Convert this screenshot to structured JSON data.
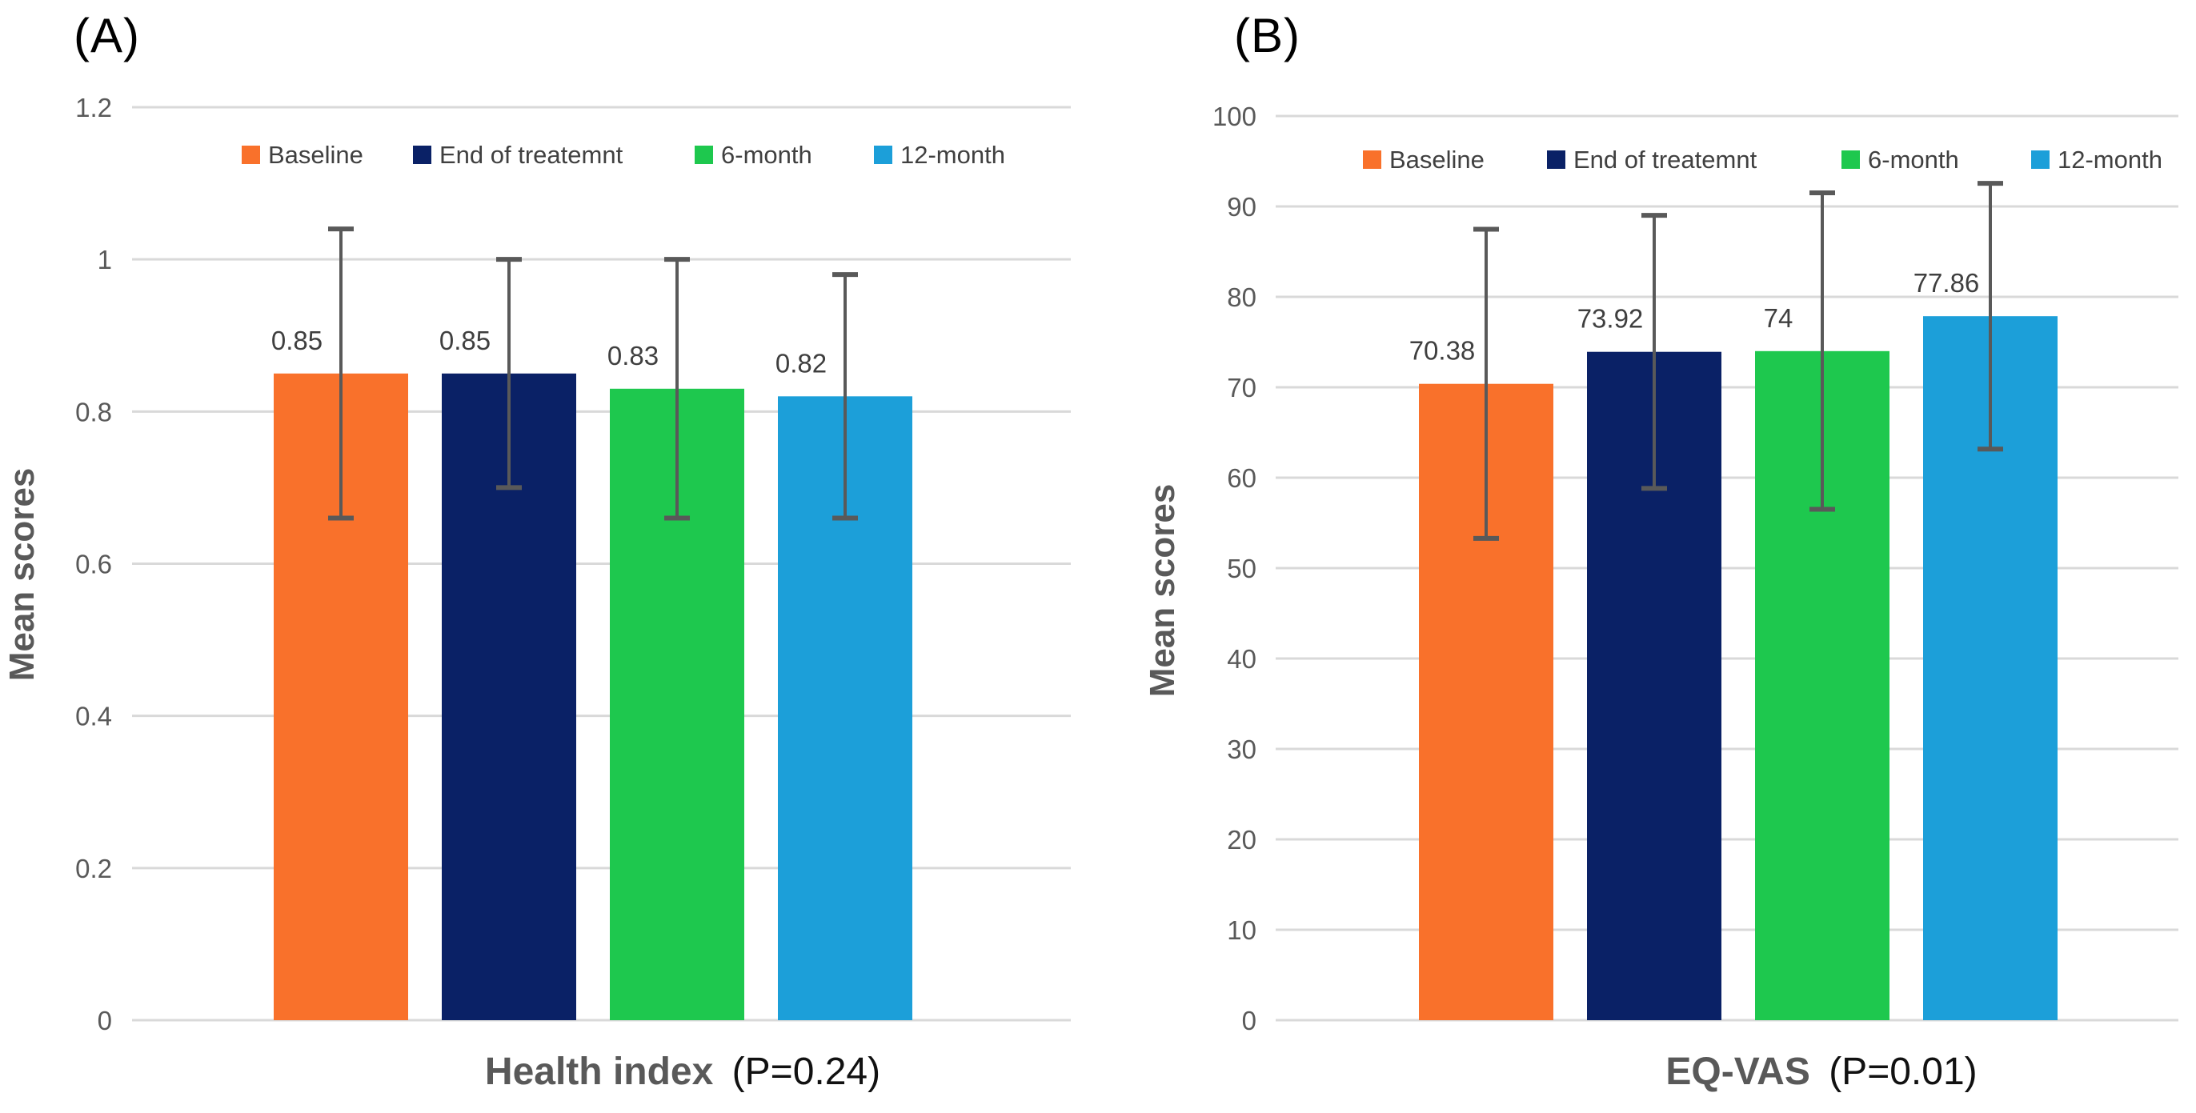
{
  "figure": {
    "panels": [
      {
        "label": "(A)"
      },
      {
        "label": "(B)"
      }
    ]
  },
  "colors": {
    "baseline": "#F9712B",
    "end_of_treatment": "#0A2166",
    "six_month": "#1EC84E",
    "twelve_month": "#1C9FD9",
    "gridline": "#D9D9D9",
    "error_bar": "#595959",
    "tick_label": "#595959",
    "value_label": "#3F3F3F",
    "legend_text": "#404040",
    "axis_title": "#595959",
    "p_value_text": "#111111",
    "panel_label": "#000000",
    "background": "#FFFFFF"
  },
  "chart_data": [
    {
      "type": "bar",
      "panel_label": "(A)",
      "xlabel_main": "Health index",
      "xlabel_sub": "(P=0.24)",
      "ylabel": "Mean scores",
      "ylim": [
        0,
        1.2
      ],
      "yticks": [
        0,
        0.2,
        0.4,
        0.6,
        0.8,
        1,
        1.2
      ],
      "ytick_labels": [
        "0",
        "0.2",
        "0.4",
        "0.6",
        "0.8",
        "1",
        "1.2"
      ],
      "grid": true,
      "legend_position": "top-inside",
      "categories": [
        "Baseline",
        "End of treatemnt",
        "6-month",
        "12-month"
      ],
      "series": [
        {
          "name": "Baseline",
          "value": 0.85,
          "value_label": "0.85",
          "error": 0.19,
          "error_low": 0.66,
          "error_high": 1.04,
          "color": "#F9712B"
        },
        {
          "name": "End of treatemnt",
          "value": 0.85,
          "value_label": "0.85",
          "error": 0.15,
          "error_low": 0.7,
          "error_high": 1.0,
          "color": "#0A2166"
        },
        {
          "name": "6-month",
          "value": 0.83,
          "value_label": "0.83",
          "error": 0.17,
          "error_low": 0.66,
          "error_high": 1.0,
          "color": "#1EC84E"
        },
        {
          "name": "12-month",
          "value": 0.82,
          "value_label": "0.82",
          "error": 0.16,
          "error_low": 0.66,
          "error_high": 0.98,
          "color": "#1C9FD9"
        }
      ]
    },
    {
      "type": "bar",
      "panel_label": "(B)",
      "xlabel_main": "EQ-VAS",
      "xlabel_sub": "(P=0.01)",
      "ylabel": "Mean scores",
      "ylim": [
        0,
        100
      ],
      "yticks": [
        0,
        10,
        20,
        30,
        40,
        50,
        60,
        70,
        80,
        90,
        100
      ],
      "ytick_labels": [
        "0",
        "10",
        "20",
        "30",
        "40",
        "50",
        "60",
        "70",
        "80",
        "90",
        "100"
      ],
      "grid": true,
      "legend_position": "top-inside",
      "categories": [
        "Baseline",
        "End of treatemnt",
        "6-month",
        "12-month"
      ],
      "series": [
        {
          "name": "Baseline",
          "value": 70.38,
          "value_label": "70.38",
          "error": 17.1,
          "error_low": 53.28,
          "error_high": 87.48,
          "color": "#F9712B"
        },
        {
          "name": "End of treatemnt",
          "value": 73.92,
          "value_label": "73.92",
          "error": 15.1,
          "error_low": 58.82,
          "error_high": 89.02,
          "color": "#0A2166"
        },
        {
          "name": "6-month",
          "value": 74,
          "value_label": "74",
          "error": 17.5,
          "error_low": 56.5,
          "error_high": 91.5,
          "color": "#1EC84E"
        },
        {
          "name": "12-month",
          "value": 77.86,
          "value_label": "77.86",
          "error": 14.7,
          "error_low": 63.16,
          "error_high": 92.56,
          "color": "#1C9FD9"
        }
      ]
    }
  ]
}
